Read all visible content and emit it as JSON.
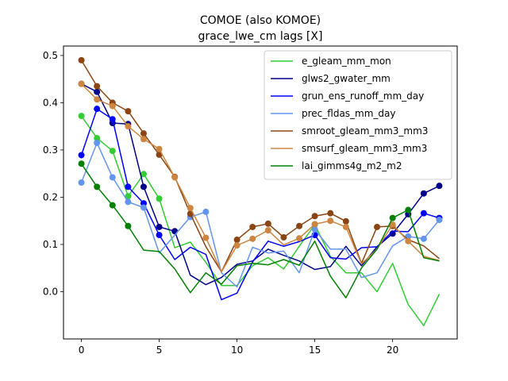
{
  "chart_data": {
    "type": "line",
    "title": "COMOE (also KOMOE)",
    "subtitle": "grace_lwe_cm lags [X]",
    "xlabel": "",
    "ylabel": "",
    "xlim": [
      -1.15,
      24.15
    ],
    "ylim": [
      -0.1,
      0.52
    ],
    "xticks": [
      0,
      5,
      10,
      15,
      20
    ],
    "yticks": [
      0.0,
      0.1,
      0.2,
      0.3,
      0.4,
      0.5
    ],
    "ytick_labels": [
      "0.0",
      "0.1",
      "0.2",
      "0.3",
      "0.4",
      "0.5"
    ],
    "grid": false,
    "legend_position": "top-right",
    "x": [
      0,
      1,
      2,
      3,
      4,
      5,
      6,
      7,
      8,
      9,
      10,
      11,
      12,
      13,
      14,
      15,
      16,
      17,
      18,
      19,
      20,
      21,
      22,
      23
    ],
    "series": [
      {
        "name": "e_gleam_mm_mon",
        "color": "#32cd32",
        "values": [
          0.372,
          0.325,
          0.298,
          0.202,
          0.249,
          0.197,
          0.093,
          0.105,
          0.062,
          0.013,
          0.013,
          0.055,
          0.072,
          0.048,
          0.096,
          0.142,
          0.075,
          0.04,
          0.04,
          0.0,
          0.06,
          -0.027,
          -0.072,
          -0.005
        ],
        "markers": [
          0,
          1,
          2,
          3,
          4,
          5,
          15
        ]
      },
      {
        "name": "glws2_gwater_mm",
        "color": "#00008b",
        "values": [
          0.44,
          0.423,
          0.357,
          0.355,
          0.222,
          0.137,
          0.128,
          0.035,
          0.015,
          0.03,
          0.058,
          0.065,
          0.09,
          0.077,
          0.065,
          0.047,
          0.053,
          0.096,
          0.055,
          0.095,
          0.123,
          0.164,
          0.208,
          0.224
        ],
        "markers": [
          0,
          1,
          2,
          3,
          4,
          5,
          6,
          20,
          21,
          22,
          23
        ]
      },
      {
        "name": "grun_ens_runoff_mm_day",
        "color": "#0000ff",
        "values": [
          0.289,
          0.387,
          0.365,
          0.222,
          0.187,
          0.12,
          0.068,
          0.094,
          0.079,
          -0.017,
          -0.003,
          0.063,
          0.107,
          0.096,
          0.106,
          0.12,
          0.072,
          0.069,
          0.093,
          0.095,
          0.128,
          0.127,
          0.166,
          0.156
        ],
        "markers": [
          0,
          1,
          2,
          3,
          4,
          5,
          15,
          22,
          23
        ]
      },
      {
        "name": "prec_fldas_mm_day",
        "color": "#6495ed",
        "values": [
          0.231,
          0.315,
          0.242,
          0.19,
          0.178,
          0.082,
          0.12,
          0.158,
          0.169,
          0.04,
          0.01,
          0.094,
          0.082,
          0.086,
          0.04,
          0.132,
          0.09,
          0.09,
          0.03,
          0.04,
          0.097,
          0.117,
          0.112,
          0.152
        ],
        "markers": [
          0,
          1,
          2,
          3,
          4,
          7,
          8,
          15,
          21,
          22,
          23
        ]
      },
      {
        "name": "smroot_gleam_mm3_mm3",
        "color": "#8b4513",
        "values": [
          0.49,
          0.435,
          0.4,
          0.382,
          0.335,
          0.29,
          0.243,
          0.165,
          0.095,
          0.042,
          0.11,
          0.137,
          0.144,
          0.115,
          0.139,
          0.16,
          0.166,
          0.149,
          0.06,
          0.137,
          0.139,
          0.11,
          0.097,
          0.07
        ],
        "markers": [
          0,
          1,
          2,
          3,
          4,
          5,
          6,
          7,
          10,
          11,
          12,
          13,
          14,
          15,
          16,
          17,
          19,
          20
        ]
      },
      {
        "name": "smsurf_gleam_mm3_mm3",
        "color": "#cd853f",
        "values": [
          0.44,
          0.407,
          0.393,
          0.35,
          0.323,
          0.302,
          0.242,
          0.177,
          0.114,
          0.042,
          0.098,
          0.112,
          0.13,
          0.099,
          0.113,
          0.143,
          0.15,
          0.137,
          0.059,
          0.09,
          0.142,
          0.107,
          0.075,
          0.066
        ],
        "markers": [
          0,
          1,
          2,
          3,
          4,
          5,
          6,
          7,
          8,
          10,
          11,
          12,
          14,
          15,
          16,
          17,
          20,
          21
        ]
      },
      {
        "name": "lai_gimms4g_m2_m2",
        "color": "#008000",
        "values": [
          0.271,
          0.222,
          0.183,
          0.139,
          0.088,
          0.085,
          0.048,
          -0.002,
          0.04,
          0.016,
          0.055,
          0.06,
          0.057,
          0.068,
          0.056,
          0.107,
          0.033,
          -0.013,
          0.05,
          0.09,
          0.156,
          0.173,
          0.072,
          0.065
        ],
        "markers": [
          0,
          1,
          2,
          3,
          20,
          21
        ]
      }
    ]
  }
}
